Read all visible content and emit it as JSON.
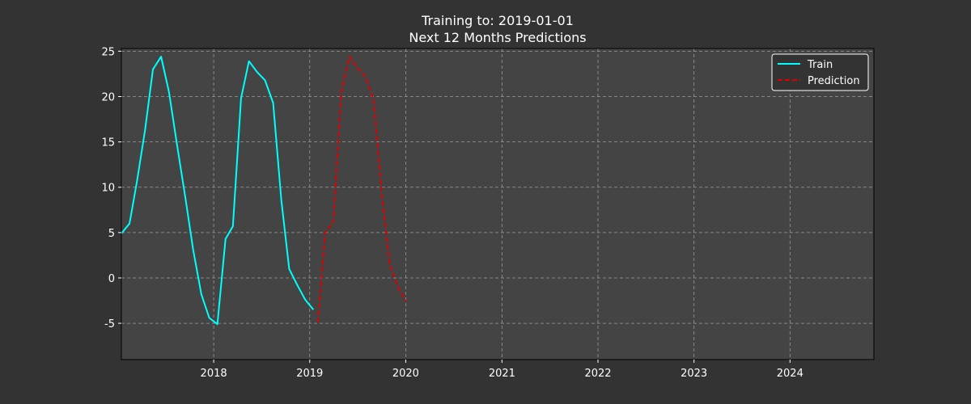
{
  "chart_data": {
    "type": "line",
    "title": [
      "Training to: 2019-01-01",
      "Next 12 Months Predictions"
    ],
    "xlabel": "",
    "ylabel": "",
    "xlim": [
      "2017-01-15",
      "2024-11-15"
    ],
    "ylim": [
      -9,
      25.3
    ],
    "xticks": [
      {
        "date": "2018-01-01",
        "label": "2018"
      },
      {
        "date": "2019-01-01",
        "label": "2019"
      },
      {
        "date": "2020-01-01",
        "label": "2020"
      },
      {
        "date": "2021-01-01",
        "label": "2021"
      },
      {
        "date": "2022-01-01",
        "label": "2022"
      },
      {
        "date": "2023-01-01",
        "label": "2023"
      },
      {
        "date": "2024-01-01",
        "label": "2024"
      }
    ],
    "yticks": [
      -5,
      0,
      5,
      10,
      15,
      20,
      25
    ],
    "grid": true,
    "legend": "top-right",
    "series": [
      {
        "name": "Train",
        "color": "#00ffff",
        "style": "solid",
        "x": [
          "2017-01-15",
          "2017-02-15",
          "2017-03-15",
          "2017-04-15",
          "2017-05-15",
          "2017-06-15",
          "2017-07-15",
          "2017-08-15",
          "2017-09-15",
          "2017-10-15",
          "2017-11-15",
          "2017-12-15",
          "2018-01-15",
          "2018-02-15",
          "2018-03-15",
          "2018-04-15",
          "2018-05-15",
          "2018-06-15",
          "2018-07-15",
          "2018-08-15",
          "2018-09-15",
          "2018-10-15",
          "2018-11-15",
          "2018-12-15",
          "2019-01-15"
        ],
        "y": [
          4.9,
          6.0,
          10.6,
          16.3,
          23.0,
          24.4,
          20.5,
          14.6,
          8.9,
          3.1,
          -1.8,
          -4.4,
          -5.1,
          4.3,
          5.7,
          19.8,
          23.9,
          22.7,
          21.8,
          19.3,
          8.6,
          1.0,
          -0.8,
          -2.4,
          -3.5
        ]
      },
      {
        "name": "Prediction",
        "color": "#dd0000",
        "style": "dashed",
        "x": [
          "2019-02-01",
          "2019-03-01",
          "2019-04-01",
          "2019-05-01",
          "2019-06-01",
          "2019-07-01",
          "2019-08-01",
          "2019-09-01",
          "2019-10-01",
          "2019-11-01",
          "2019-12-01",
          "2020-01-01"
        ],
        "y": [
          -4.9,
          5.0,
          6.2,
          20.5,
          24.4,
          23.2,
          22.2,
          19.6,
          9.6,
          1.5,
          -0.9,
          -2.6
        ]
      }
    ]
  }
}
